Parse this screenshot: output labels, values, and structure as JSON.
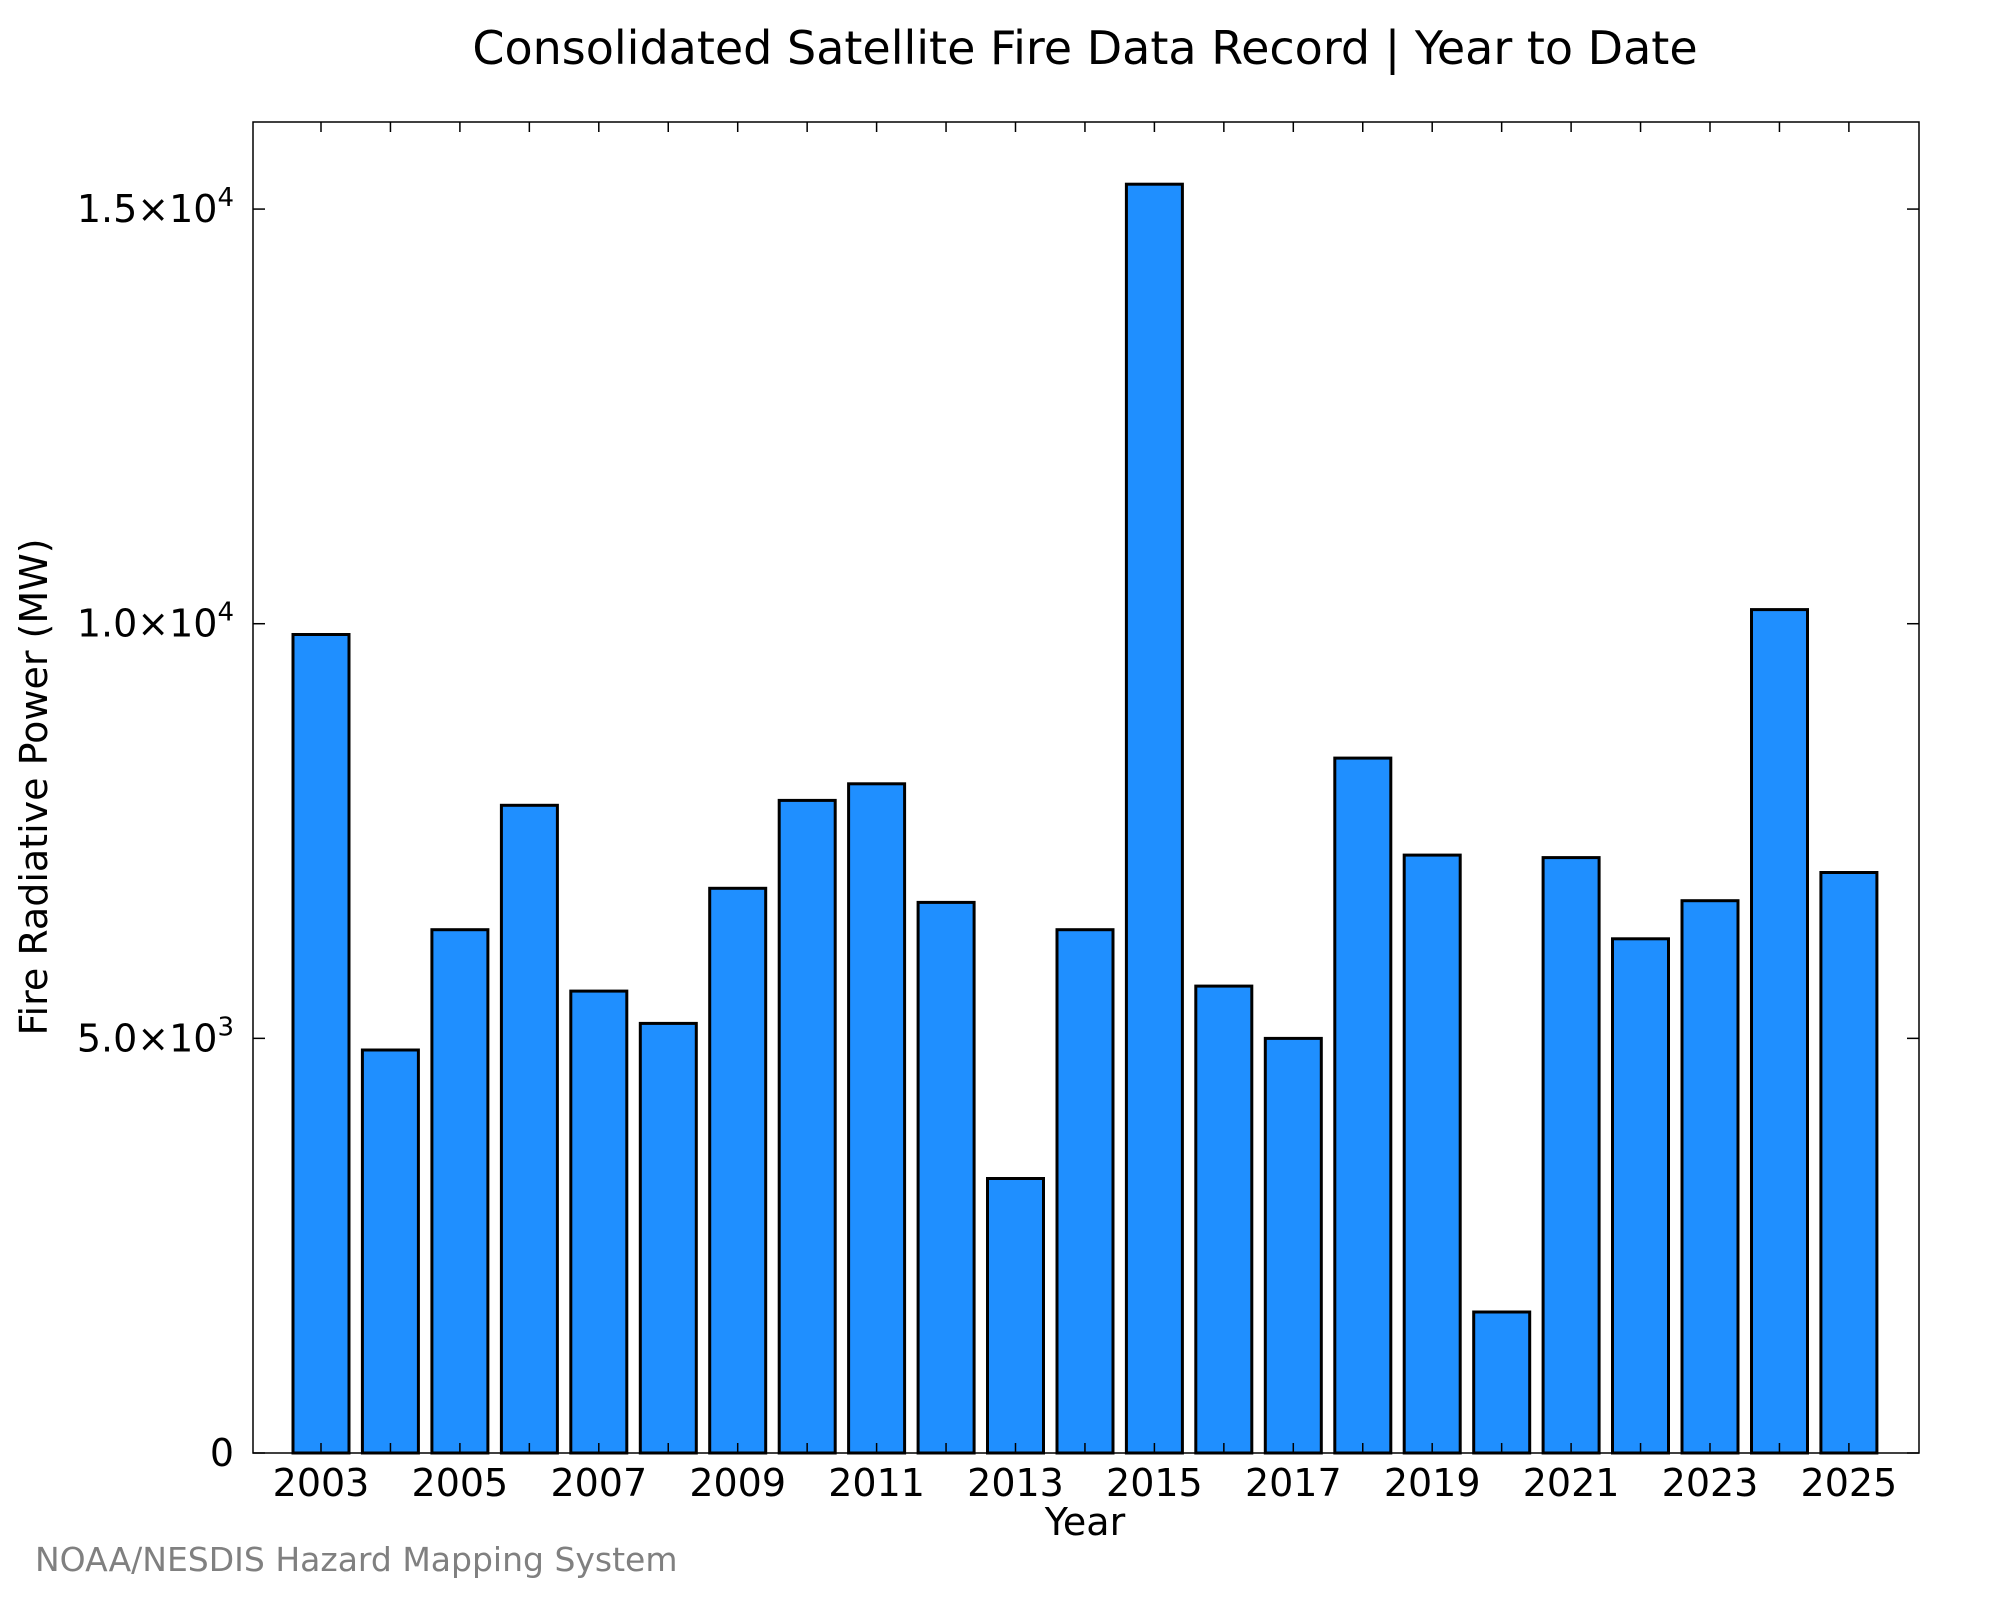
{
  "chart_data": {
    "type": "bar",
    "title": "Consolidated Satellite Fire Data Record | Year to Date",
    "xlabel": "Year",
    "ylabel": "Fire Radiative Power (MW)",
    "categories": [
      "2003",
      "2004",
      "2005",
      "2006",
      "2007",
      "2008",
      "2009",
      "2010",
      "2011",
      "2012",
      "2013",
      "2014",
      "2015",
      "2016",
      "2017",
      "2018",
      "2019",
      "2020",
      "2021",
      "2022",
      "2023",
      "2024",
      "2025"
    ],
    "values": [
      9870,
      4860,
      6310,
      7810,
      5570,
      5180,
      6810,
      7870,
      8070,
      6640,
      3310,
      6310,
      15300,
      5630,
      5000,
      8380,
      7210,
      1700,
      7180,
      6200,
      6660,
      10170,
      7000
    ],
    "x_tick_labels": [
      "2003",
      "2005",
      "2007",
      "2009",
      "2011",
      "2013",
      "2015",
      "2017",
      "2019",
      "2021",
      "2023",
      "2025"
    ],
    "ylim": [
      0,
      16050
    ],
    "y_ticks": [
      {
        "value": 0,
        "mantissa": "0",
        "exponent": ""
      },
      {
        "value": 5000,
        "mantissa": "5.0×10",
        "exponent": "3"
      },
      {
        "value": 10000,
        "mantissa": "1.0×10",
        "exponent": "4"
      },
      {
        "value": 15000,
        "mantissa": "1.5×10",
        "exponent": "4"
      }
    ],
    "bar_color": "#1f8fff",
    "grid": false,
    "legend": "none"
  },
  "credit": "NOAA/NESDIS Hazard Mapping System"
}
